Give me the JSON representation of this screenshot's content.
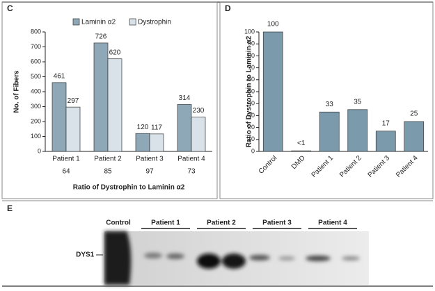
{
  "chart_data": [
    {
      "type": "grouped-bar",
      "panel_label": "C",
      "categories": [
        "Patient 1",
        "Patient 2",
        "Patient 3",
        "Patient 4"
      ],
      "category_notes": [
        64,
        85,
        97,
        73
      ],
      "x_label": "Ratio of Dystrophin to Laminin α2",
      "y_label": "No. of Fibers",
      "series": [
        {
          "name": "Laminin α2",
          "color": "#8ea8b8",
          "values": [
            461,
            726,
            120,
            314
          ]
        },
        {
          "name": "Dystrophin",
          "color": "#d8e2e8",
          "values": [
            297,
            620,
            117,
            230
          ]
        }
      ],
      "ylim": [
        0,
        800
      ],
      "yticks": [
        0,
        100,
        200,
        300,
        400,
        500,
        600,
        700,
        800
      ]
    },
    {
      "type": "bar",
      "panel_label": "D",
      "categories": [
        "Control",
        "DMD",
        "Patient 1",
        "Patient 2",
        "Patient 3",
        "Patient 4"
      ],
      "values": [
        100,
        0.5,
        33,
        35,
        17,
        25
      ],
      "value_labels": [
        "100",
        "<1",
        "33",
        "35",
        "17",
        "25"
      ],
      "color": "#7b9aab",
      "y_label": "Ratio of Dystrophin to Laminin α2",
      "ylim": [
        0,
        100
      ],
      "yticks": [
        0,
        10,
        20,
        30,
        40,
        50,
        60,
        70,
        80,
        90,
        100
      ]
    }
  ],
  "panel_e": {
    "panel_label": "E",
    "lanes": [
      "Control",
      "Patient 1",
      "Patient 2",
      "Patient 3",
      "Patient 4"
    ],
    "row_label": "DYS1 —"
  }
}
